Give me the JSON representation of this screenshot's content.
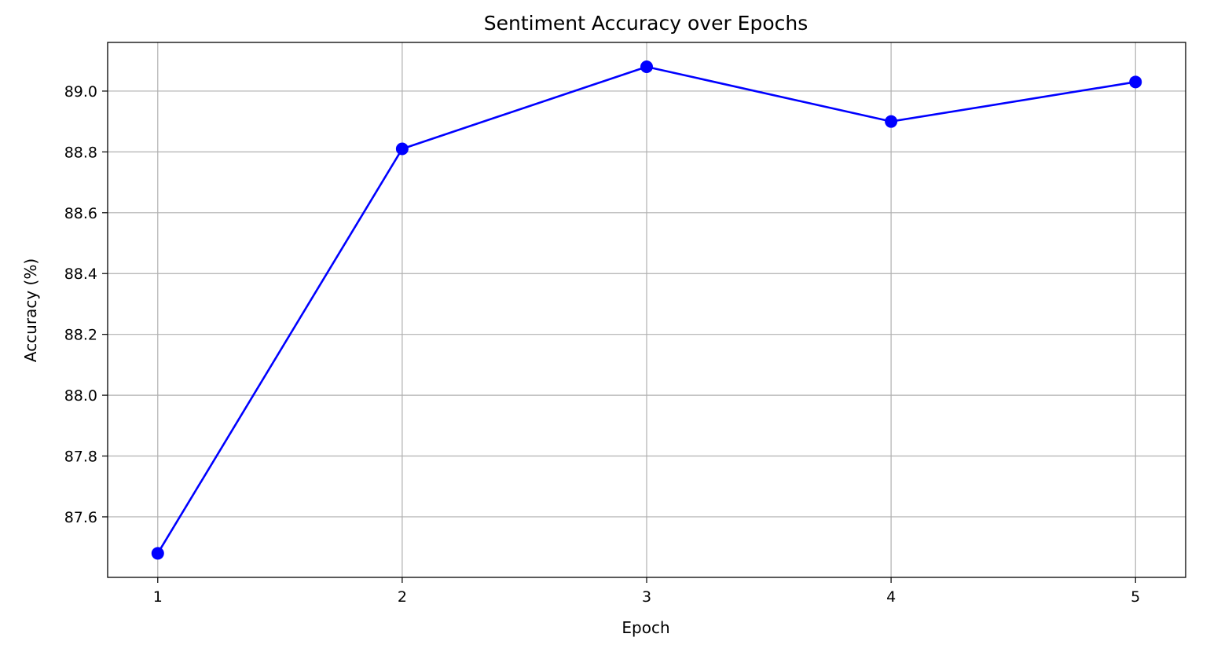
{
  "chart_data": {
    "type": "line",
    "title": "Sentiment Accuracy over Epochs",
    "xlabel": "Epoch",
    "ylabel": "Accuracy (%)",
    "x": [
      1,
      2,
      3,
      4,
      5
    ],
    "series": [
      {
        "values": [
          87.48,
          88.81,
          89.08,
          88.9,
          89.03
        ],
        "color": "#0000ff",
        "marker": "circle"
      }
    ],
    "xticks": [
      "1",
      "2",
      "3",
      "4",
      "5"
    ],
    "yticks": [
      "87.6",
      "87.8",
      "88.0",
      "88.2",
      "88.4",
      "88.6",
      "88.8",
      "89.0"
    ],
    "xlim": [
      0.795,
      5.205
    ],
    "ylim": [
      87.401,
      89.16
    ],
    "grid": true,
    "grid_color": "#b0b0b0",
    "axes_color": "#000000"
  }
}
